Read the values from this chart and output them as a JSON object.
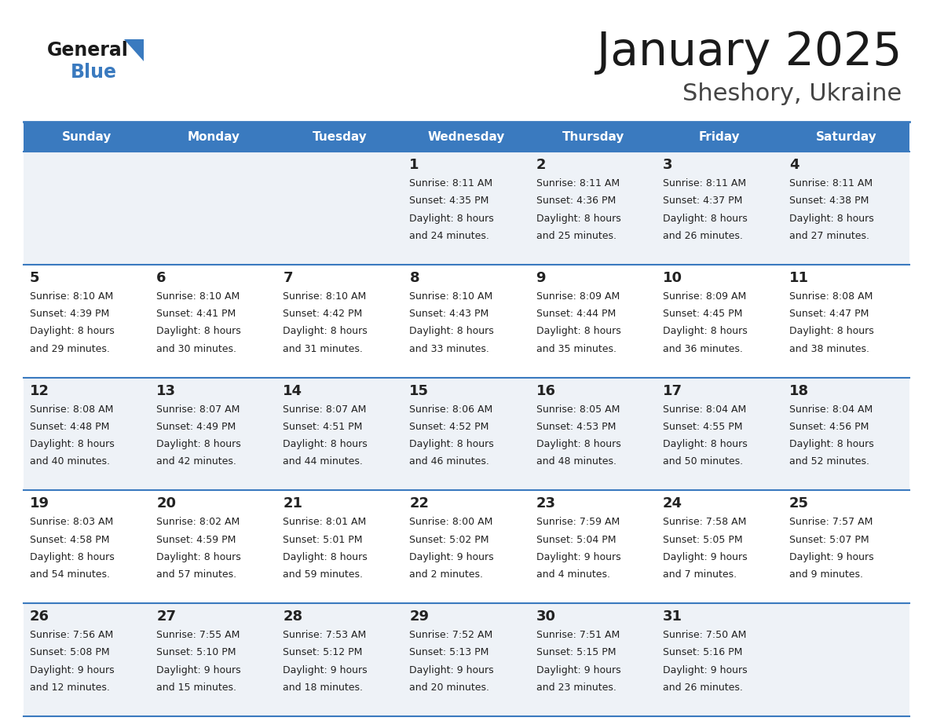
{
  "title": "January 2025",
  "subtitle": "Sheshory, Ukraine",
  "header_bg": "#3a7abf",
  "header_text": "#ffffff",
  "row_bg_odd": "#eef2f7",
  "row_bg_even": "#ffffff",
  "day_text_color": "#222222",
  "info_text_color": "#222222",
  "border_color": "#3a7abf",
  "days_of_week": [
    "Sunday",
    "Monday",
    "Tuesday",
    "Wednesday",
    "Thursday",
    "Friday",
    "Saturday"
  ],
  "calendar": [
    [
      {
        "day": "",
        "sunrise": "",
        "sunset": "",
        "daylight_h": "",
        "daylight_m": ""
      },
      {
        "day": "",
        "sunrise": "",
        "sunset": "",
        "daylight_h": "",
        "daylight_m": ""
      },
      {
        "day": "",
        "sunrise": "",
        "sunset": "",
        "daylight_h": "",
        "daylight_m": ""
      },
      {
        "day": "1",
        "sunrise": "8:11 AM",
        "sunset": "4:35 PM",
        "daylight_h": "8 hours",
        "daylight_m": "and 24 minutes."
      },
      {
        "day": "2",
        "sunrise": "8:11 AM",
        "sunset": "4:36 PM",
        "daylight_h": "8 hours",
        "daylight_m": "and 25 minutes."
      },
      {
        "day": "3",
        "sunrise": "8:11 AM",
        "sunset": "4:37 PM",
        "daylight_h": "8 hours",
        "daylight_m": "and 26 minutes."
      },
      {
        "day": "4",
        "sunrise": "8:11 AM",
        "sunset": "4:38 PM",
        "daylight_h": "8 hours",
        "daylight_m": "and 27 minutes."
      }
    ],
    [
      {
        "day": "5",
        "sunrise": "8:10 AM",
        "sunset": "4:39 PM",
        "daylight_h": "8 hours",
        "daylight_m": "and 29 minutes."
      },
      {
        "day": "6",
        "sunrise": "8:10 AM",
        "sunset": "4:41 PM",
        "daylight_h": "8 hours",
        "daylight_m": "and 30 minutes."
      },
      {
        "day": "7",
        "sunrise": "8:10 AM",
        "sunset": "4:42 PM",
        "daylight_h": "8 hours",
        "daylight_m": "and 31 minutes."
      },
      {
        "day": "8",
        "sunrise": "8:10 AM",
        "sunset": "4:43 PM",
        "daylight_h": "8 hours",
        "daylight_m": "and 33 minutes."
      },
      {
        "day": "9",
        "sunrise": "8:09 AM",
        "sunset": "4:44 PM",
        "daylight_h": "8 hours",
        "daylight_m": "and 35 minutes."
      },
      {
        "day": "10",
        "sunrise": "8:09 AM",
        "sunset": "4:45 PM",
        "daylight_h": "8 hours",
        "daylight_m": "and 36 minutes."
      },
      {
        "day": "11",
        "sunrise": "8:08 AM",
        "sunset": "4:47 PM",
        "daylight_h": "8 hours",
        "daylight_m": "and 38 minutes."
      }
    ],
    [
      {
        "day": "12",
        "sunrise": "8:08 AM",
        "sunset": "4:48 PM",
        "daylight_h": "8 hours",
        "daylight_m": "and 40 minutes."
      },
      {
        "day": "13",
        "sunrise": "8:07 AM",
        "sunset": "4:49 PM",
        "daylight_h": "8 hours",
        "daylight_m": "and 42 minutes."
      },
      {
        "day": "14",
        "sunrise": "8:07 AM",
        "sunset": "4:51 PM",
        "daylight_h": "8 hours",
        "daylight_m": "and 44 minutes."
      },
      {
        "day": "15",
        "sunrise": "8:06 AM",
        "sunset": "4:52 PM",
        "daylight_h": "8 hours",
        "daylight_m": "and 46 minutes."
      },
      {
        "day": "16",
        "sunrise": "8:05 AM",
        "sunset": "4:53 PM",
        "daylight_h": "8 hours",
        "daylight_m": "and 48 minutes."
      },
      {
        "day": "17",
        "sunrise": "8:04 AM",
        "sunset": "4:55 PM",
        "daylight_h": "8 hours",
        "daylight_m": "and 50 minutes."
      },
      {
        "day": "18",
        "sunrise": "8:04 AM",
        "sunset": "4:56 PM",
        "daylight_h": "8 hours",
        "daylight_m": "and 52 minutes."
      }
    ],
    [
      {
        "day": "19",
        "sunrise": "8:03 AM",
        "sunset": "4:58 PM",
        "daylight_h": "8 hours",
        "daylight_m": "and 54 minutes."
      },
      {
        "day": "20",
        "sunrise": "8:02 AM",
        "sunset": "4:59 PM",
        "daylight_h": "8 hours",
        "daylight_m": "and 57 minutes."
      },
      {
        "day": "21",
        "sunrise": "8:01 AM",
        "sunset": "5:01 PM",
        "daylight_h": "8 hours",
        "daylight_m": "and 59 minutes."
      },
      {
        "day": "22",
        "sunrise": "8:00 AM",
        "sunset": "5:02 PM",
        "daylight_h": "9 hours",
        "daylight_m": "and 2 minutes."
      },
      {
        "day": "23",
        "sunrise": "7:59 AM",
        "sunset": "5:04 PM",
        "daylight_h": "9 hours",
        "daylight_m": "and 4 minutes."
      },
      {
        "day": "24",
        "sunrise": "7:58 AM",
        "sunset": "5:05 PM",
        "daylight_h": "9 hours",
        "daylight_m": "and 7 minutes."
      },
      {
        "day": "25",
        "sunrise": "7:57 AM",
        "sunset": "5:07 PM",
        "daylight_h": "9 hours",
        "daylight_m": "and 9 minutes."
      }
    ],
    [
      {
        "day": "26",
        "sunrise": "7:56 AM",
        "sunset": "5:08 PM",
        "daylight_h": "9 hours",
        "daylight_m": "and 12 minutes."
      },
      {
        "day": "27",
        "sunrise": "7:55 AM",
        "sunset": "5:10 PM",
        "daylight_h": "9 hours",
        "daylight_m": "and 15 minutes."
      },
      {
        "day": "28",
        "sunrise": "7:53 AM",
        "sunset": "5:12 PM",
        "daylight_h": "9 hours",
        "daylight_m": "and 18 minutes."
      },
      {
        "day": "29",
        "sunrise": "7:52 AM",
        "sunset": "5:13 PM",
        "daylight_h": "9 hours",
        "daylight_m": "and 20 minutes."
      },
      {
        "day": "30",
        "sunrise": "7:51 AM",
        "sunset": "5:15 PM",
        "daylight_h": "9 hours",
        "daylight_m": "and 23 minutes."
      },
      {
        "day": "31",
        "sunrise": "7:50 AM",
        "sunset": "5:16 PM",
        "daylight_h": "9 hours",
        "daylight_m": "and 26 minutes."
      },
      {
        "day": "",
        "sunrise": "",
        "sunset": "",
        "daylight_h": "",
        "daylight_m": ""
      }
    ]
  ]
}
